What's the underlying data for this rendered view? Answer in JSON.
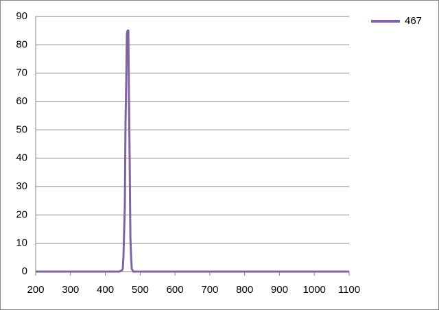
{
  "chart_data": {
    "type": "line",
    "x": [
      200,
      440,
      448,
      450,
      452,
      454,
      456,
      458,
      460,
      462,
      464,
      466,
      468,
      470,
      472,
      474,
      476,
      478,
      480,
      1100
    ],
    "series": [
      {
        "name": "467",
        "color": "#8064a2",
        "values": [
          0,
          0,
          0.5,
          1,
          5,
          14,
          23,
          53,
          67,
          84,
          85,
          85,
          60,
          38,
          12,
          5,
          1,
          0.5,
          0,
          0
        ]
      }
    ],
    "xlim": [
      200,
      1100
    ],
    "xticks": [
      200,
      300,
      400,
      500,
      600,
      700,
      800,
      900,
      1000,
      1100
    ],
    "ylim": [
      0,
      90
    ],
    "yticks": [
      0,
      10,
      20,
      30,
      40,
      50,
      60,
      70,
      80,
      90
    ],
    "grid": true,
    "legend": "right"
  }
}
